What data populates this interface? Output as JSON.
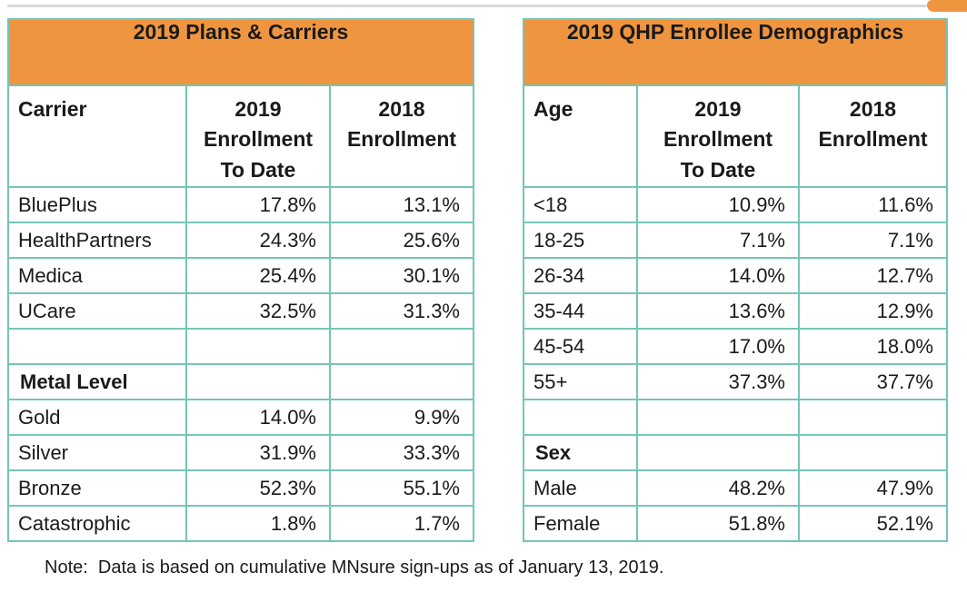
{
  "colors": {
    "accent_orange": "#F0953F",
    "table_border_teal": "#74C5BA",
    "top_rule_gray": "#D8D8D8"
  },
  "decorations": {
    "top_rule": "horizontal-gray-rule",
    "corner_tab": "orange-corner-tab"
  },
  "note": "Note:  Data is based on cumulative MNsure sign-ups as of January 13, 2019.",
  "tables": [
    {
      "title": "2019 Plans & Carriers",
      "columns": [
        "Carrier",
        "2019\nEnrollment\nTo Date",
        "2018\nEnrollment"
      ],
      "rows": [
        {
          "label": "BluePlus",
          "values": [
            "17.8%",
            "13.1%"
          ],
          "section": false
        },
        {
          "label": "HealthPartners",
          "values": [
            "24.3%",
            "25.6%"
          ],
          "section": false
        },
        {
          "label": "Medica",
          "values": [
            "25.4%",
            "30.1%"
          ],
          "section": false
        },
        {
          "label": "UCare",
          "values": [
            "32.5%",
            "31.3%"
          ],
          "section": false
        },
        {
          "label": "",
          "values": [
            "",
            ""
          ],
          "section": false
        },
        {
          "label": "Metal Level",
          "values": [
            "",
            ""
          ],
          "section": true
        },
        {
          "label": "Gold",
          "values": [
            "14.0%",
            "9.9%"
          ],
          "section": false
        },
        {
          "label": "Silver",
          "values": [
            "31.9%",
            "33.3%"
          ],
          "section": false
        },
        {
          "label": "Bronze",
          "values": [
            "52.3%",
            "55.1%"
          ],
          "section": false
        },
        {
          "label": "Catastrophic",
          "values": [
            "1.8%",
            "1.7%"
          ],
          "section": false
        }
      ]
    },
    {
      "title": "2019 QHP Enrollee Demographics",
      "columns": [
        "Age",
        "2019\nEnrollment\nTo Date",
        "2018\nEnrollment"
      ],
      "rows": [
        {
          "label": "<18",
          "values": [
            "10.9%",
            "11.6%"
          ],
          "section": false
        },
        {
          "label": "18-25",
          "values": [
            "7.1%",
            "7.1%"
          ],
          "section": false
        },
        {
          "label": "26-34",
          "values": [
            "14.0%",
            "12.7%"
          ],
          "section": false
        },
        {
          "label": "35-44",
          "values": [
            "13.6%",
            "12.9%"
          ],
          "section": false
        },
        {
          "label": "45-54",
          "values": [
            "17.0%",
            "18.0%"
          ],
          "section": false
        },
        {
          "label": "55+",
          "values": [
            "37.3%",
            "37.7%"
          ],
          "section": false
        },
        {
          "label": "",
          "values": [
            "",
            ""
          ],
          "section": false
        },
        {
          "label": "Sex",
          "values": [
            "",
            ""
          ],
          "section": true
        },
        {
          "label": "Male",
          "values": [
            "48.2%",
            "47.9%"
          ],
          "section": false
        },
        {
          "label": "Female",
          "values": [
            "51.8%",
            "52.1%"
          ],
          "section": false
        }
      ]
    }
  ]
}
